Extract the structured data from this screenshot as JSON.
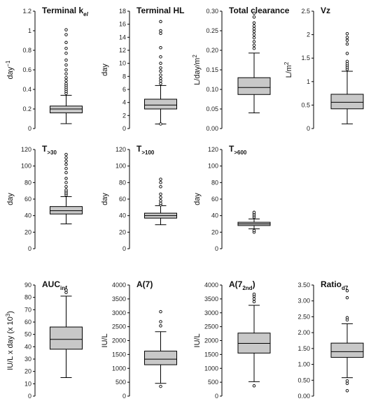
{
  "chart_data": [
    {
      "type": "boxplot",
      "title": "Terminal k",
      "title_sub": "el",
      "title_sub_italic": true,
      "title_main_italic_k": true,
      "ylabel": "day",
      "ylabel_sup": "−1",
      "ylim": [
        0,
        1.2
      ],
      "ticks": [
        0,
        0.2,
        0.4,
        0.6,
        0.8,
        1,
        1.2
      ],
      "tick_labels": [
        "0",
        "0.2",
        "0.4",
        "0.6",
        "0.8",
        "1",
        "1.2"
      ],
      "whisker_low": 0.05,
      "q1": 0.16,
      "median": 0.2,
      "q3": 0.23,
      "whisker_high": 0.34,
      "outliers": [
        0.36,
        0.38,
        0.4,
        0.42,
        0.44,
        0.46,
        0.49,
        0.52,
        0.56,
        0.6,
        0.65,
        0.7,
        0.77,
        0.82,
        0.88,
        0.96,
        1.01
      ]
    },
    {
      "type": "boxplot",
      "title": "Terminal HL",
      "ylabel": "day",
      "ylim": [
        0,
        18
      ],
      "ticks": [
        0,
        2,
        4,
        6,
        8,
        10,
        12,
        14,
        16,
        18
      ],
      "tick_labels": [
        "0",
        "2",
        "4",
        "6",
        "8",
        "10",
        "12",
        "14",
        "16",
        "18"
      ],
      "whisker_low": 0.7,
      "q1": 3.0,
      "median": 3.6,
      "q3": 4.5,
      "whisker_high": 6.6,
      "outliers": [
        0.7,
        6.9,
        7.3,
        7.7,
        8.2,
        8.8,
        9.3,
        10.0,
        11.0,
        12.4,
        14.6,
        15.0,
        16.4
      ]
    },
    {
      "type": "boxplot",
      "title": "Total clearance",
      "ylabel": "L/day/m",
      "ylabel_sup": "2",
      "ylim": [
        0,
        0.3
      ],
      "ticks": [
        0,
        0.05,
        0.1,
        0.15,
        0.2,
        0.25,
        0.3
      ],
      "tick_labels": [
        "0.00",
        "0.05",
        "0.10",
        "0.15",
        "0.20",
        "0.25",
        "0.30"
      ],
      "whisker_low": 0.04,
      "q1": 0.087,
      "median": 0.105,
      "q3": 0.13,
      "whisker_high": 0.193,
      "outliers": [
        0.205,
        0.213,
        0.222,
        0.232,
        0.24,
        0.248,
        0.255,
        0.262,
        0.27,
        0.285,
        0.295
      ]
    },
    {
      "type": "boxplot",
      "title": "Vz",
      "ylabel": "L/m",
      "ylabel_sup": "2",
      "ylim": [
        0,
        2.5
      ],
      "ticks": [
        0,
        0.5,
        1,
        1.5,
        2,
        2.5
      ],
      "tick_labels": [
        "0",
        "0.5",
        "1",
        "1.5",
        "2",
        "2.5"
      ],
      "whisker_low": 0.1,
      "q1": 0.42,
      "median": 0.56,
      "q3": 0.73,
      "whisker_high": 1.22,
      "outliers": [
        1.26,
        1.3,
        1.34,
        1.38,
        1.43,
        1.6,
        1.8,
        1.88,
        1.94,
        2.02
      ]
    },
    {
      "type": "boxplot",
      "title": "T",
      "title_sub": ">30",
      "ylabel": "day",
      "ylim": [
        0,
        120
      ],
      "ticks": [
        0,
        20,
        40,
        60,
        80,
        100,
        120
      ],
      "tick_labels": [
        "0",
        "20",
        "40",
        "60",
        "80",
        "100",
        "120"
      ],
      "whisker_low": 30,
      "q1": 42,
      "median": 46,
      "q3": 51,
      "whisker_high": 63,
      "outliers": [
        65,
        67,
        69,
        71,
        75,
        80,
        85,
        92,
        97,
        102,
        106,
        110,
        114
      ]
    },
    {
      "type": "boxplot",
      "title": "T",
      "title_sub": ">100",
      "ylabel": "day",
      "ylim": [
        0,
        120
      ],
      "ticks": [
        0,
        20,
        40,
        60,
        80,
        100,
        120
      ],
      "tick_labels": [
        "0",
        "20",
        "40",
        "60",
        "80",
        "100",
        "120"
      ],
      "whisker_low": 29,
      "q1": 37,
      "median": 40,
      "q3": 43,
      "whisker_high": 52,
      "outliers": [
        53,
        55,
        58,
        62,
        66,
        75,
        80,
        84
      ]
    },
    {
      "type": "boxplot",
      "title": "T",
      "title_sub": ">600",
      "ylabel": "day",
      "ylim": [
        0,
        120
      ],
      "ticks": [
        0,
        20,
        40,
        60,
        80,
        100,
        120
      ],
      "tick_labels": [
        "0",
        "20",
        "40",
        "60",
        "80",
        "100",
        "120"
      ],
      "whisker_low": 24,
      "q1": 28,
      "median": 30,
      "q3": 32,
      "whisker_high": 36,
      "outliers": [
        20,
        22,
        38,
        40,
        42,
        44
      ]
    },
    {
      "type": "boxplot",
      "title": "AUC",
      "title_sub": "inf",
      "ylabel": "IU/L x day (x 10",
      "ylabel_sup": "3",
      "ylabel_after": ")",
      "ylim": [
        0,
        90
      ],
      "ticks": [
        0,
        10,
        20,
        30,
        40,
        50,
        60,
        70,
        80,
        90
      ],
      "tick_labels": [
        "0",
        "10",
        "20",
        "30",
        "40",
        "50",
        "60",
        "70",
        "80",
        "90"
      ],
      "whisker_low": 15,
      "q1": 38,
      "median": 46,
      "q3": 56,
      "whisker_high": 81,
      "outliers": [
        84,
        86
      ]
    },
    {
      "type": "boxplot",
      "title": "A(7)",
      "ylabel": "IU/L",
      "ylim": [
        0,
        4000
      ],
      "ticks": [
        0,
        500,
        1000,
        1500,
        2000,
        2500,
        3000,
        3500,
        4000
      ],
      "tick_labels": [
        "0",
        "500",
        "1000",
        "1500",
        "2000",
        "2500",
        "3000",
        "3500",
        "4000"
      ],
      "whisker_low": 460,
      "q1": 1130,
      "median": 1330,
      "q3": 1620,
      "whisker_high": 2320,
      "outliers": [
        350,
        2530,
        2680,
        3040
      ]
    },
    {
      "type": "boxplot",
      "title": "A(7",
      "title_sub": "2nd",
      "title_after": ")",
      "ylabel": "IU/L",
      "ylim": [
        0,
        4000
      ],
      "ticks": [
        0,
        500,
        1000,
        1500,
        2000,
        2500,
        3000,
        3500,
        4000
      ],
      "tick_labels": [
        "0",
        "500",
        "1000",
        "1500",
        "2000",
        "2500",
        "3000",
        "3500",
        "4000"
      ],
      "whisker_low": 520,
      "q1": 1550,
      "median": 1900,
      "q3": 2270,
      "whisker_high": 3270,
      "outliers": [
        370,
        3400,
        3500,
        3600,
        3670
      ]
    },
    {
      "type": "boxplot",
      "title": "Ratio",
      "title_sub": "d7",
      "ylabel": "",
      "ylim": [
        0,
        3.5
      ],
      "ticks": [
        0,
        0.5,
        1,
        1.5,
        2,
        2.5,
        3,
        3.5
      ],
      "tick_labels": [
        "0.00",
        "0.50",
        "1.00",
        "1.50",
        "2.00",
        "2.50",
        "3.00",
        "3.50"
      ],
      "whisker_low": 0.58,
      "q1": 1.22,
      "median": 1.4,
      "q3": 1.67,
      "whisker_high": 2.28,
      "outliers": [
        0.17,
        0.4,
        0.48,
        2.4,
        2.47,
        3.1,
        3.32
      ]
    }
  ],
  "colors": {
    "box_fill": "#c8c8c8",
    "stroke": "#000000"
  }
}
